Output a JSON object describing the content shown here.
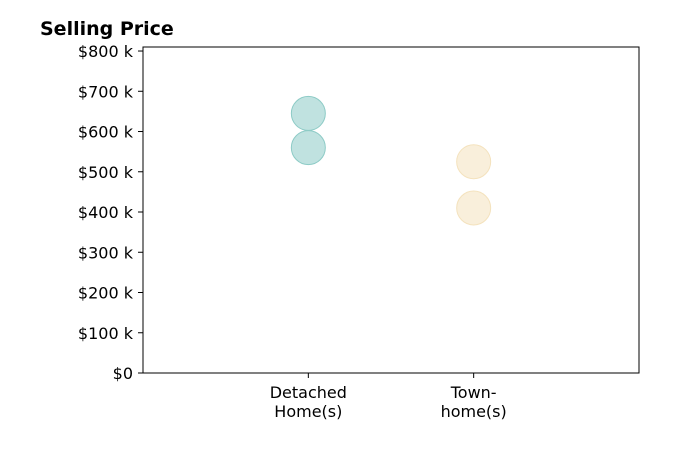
{
  "chart_data": {
    "type": "scatter",
    "title": "Selling Price",
    "xlabel": "",
    "ylabel": "",
    "categories": [
      "Detached\nHome(s)",
      "Town-\nhome(s)"
    ],
    "y_tick_labels": [
      "$0",
      "$100 k",
      "$200 k",
      "$300 k",
      "$400 k",
      "$500 k",
      "$600 k",
      "$700 k",
      "$800 k"
    ],
    "y_ticks": [
      0,
      100000,
      200000,
      300000,
      400000,
      500000,
      600000,
      700000,
      800000
    ],
    "ylim": [
      0,
      810000
    ],
    "xlim": [
      0,
      3
    ],
    "grid": false,
    "series": [
      {
        "category_index": 0,
        "values": [
          645000,
          560000
        ],
        "color": "#8dcbc6"
      },
      {
        "category_index": 1,
        "values": [
          525000,
          410000
        ],
        "color": "#f4e2bd"
      }
    ]
  }
}
